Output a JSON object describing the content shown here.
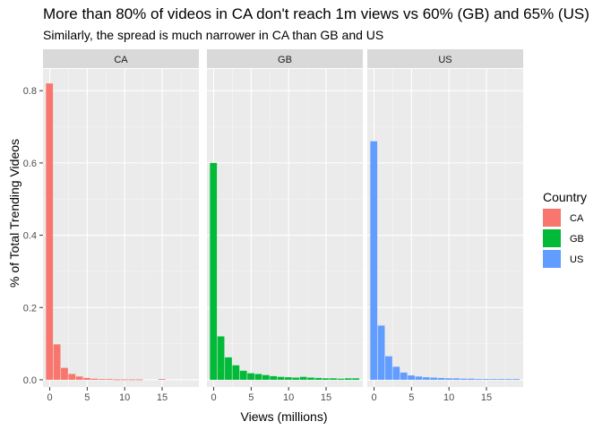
{
  "chart_data": {
    "type": "bar",
    "title": "More than 80% of videos in CA don't reach 1m views vs 60% (GB) and 65% (US)",
    "subtitle": "Similarly, the spread is much narrower in CA than GB and US",
    "xlabel": "Views (millions)",
    "ylabel": "% of Total Trending Videos",
    "xlim": [
      -0.9,
      19.9
    ],
    "ylim": [
      -0.02,
      0.86
    ],
    "xticks": [
      0,
      5,
      10,
      15
    ],
    "yticks": [
      0.0,
      0.2,
      0.4,
      0.6,
      0.8
    ],
    "bin_width": 1,
    "grid": true,
    "legend": {
      "title": "Country",
      "placement": "right"
    },
    "facets": [
      {
        "name": "CA",
        "color": "#F8766D",
        "bins": [
          0,
          1,
          2,
          3,
          4,
          5,
          6,
          7,
          8,
          9,
          10,
          11,
          12,
          13,
          14,
          15,
          16,
          17,
          18,
          19
        ],
        "values": [
          0.82,
          0.098,
          0.033,
          0.016,
          0.009,
          0.005,
          0.003,
          0.002,
          0.002,
          0.001,
          0.001,
          0.001,
          0.001,
          0,
          0,
          0.002,
          0,
          0,
          0,
          0
        ]
      },
      {
        "name": "GB",
        "color": "#00BA38",
        "bins": [
          0,
          1,
          2,
          3,
          4,
          5,
          6,
          7,
          8,
          9,
          10,
          11,
          12,
          13,
          14,
          15,
          16,
          17,
          18,
          19
        ],
        "values": [
          0.6,
          0.12,
          0.062,
          0.04,
          0.025,
          0.018,
          0.016,
          0.013,
          0.01,
          0.008,
          0.007,
          0.006,
          0.008,
          0.006,
          0.005,
          0.004,
          0.004,
          0.003,
          0.004,
          0.004
        ]
      },
      {
        "name": "US",
        "color": "#619CFF",
        "bins": [
          0,
          1,
          2,
          3,
          4,
          5,
          6,
          7,
          8,
          9,
          10,
          11,
          12,
          13,
          14,
          15,
          16,
          17,
          18,
          19
        ],
        "values": [
          0.66,
          0.15,
          0.065,
          0.036,
          0.02,
          0.012,
          0.009,
          0.007,
          0.006,
          0.005,
          0.004,
          0.004,
          0.003,
          0.003,
          0.002,
          0.002,
          0.002,
          0.002,
          0.002,
          0.002
        ]
      }
    ]
  }
}
